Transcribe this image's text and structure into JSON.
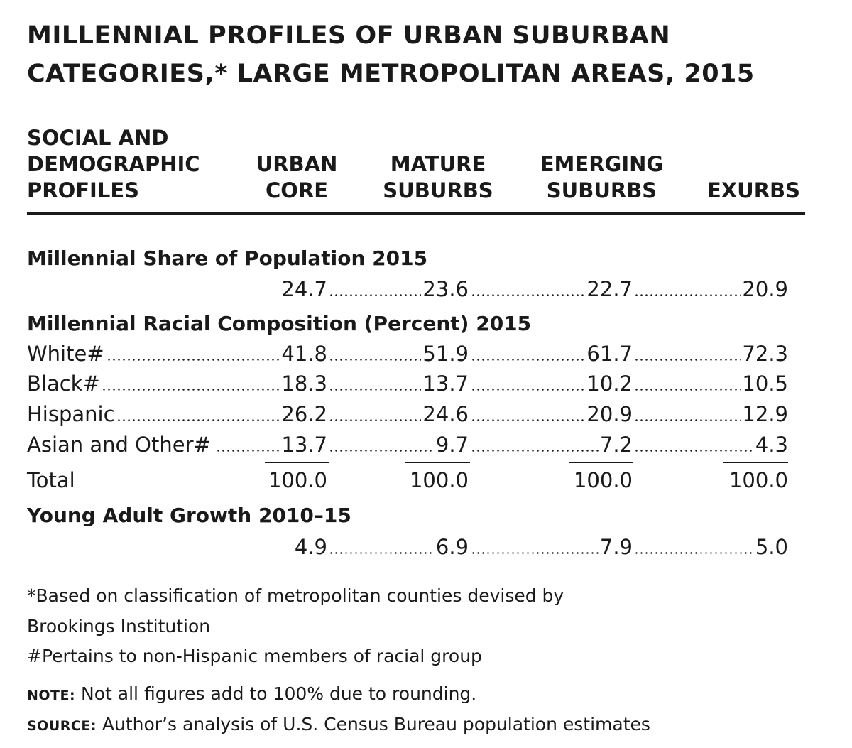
{
  "title": {
    "line1": "MILLENNIAL PROFILES OF URBAN SUBURBAN",
    "line2": "CATEGORIES,* LARGE METROPOLITAN AREAS, 2015"
  },
  "header": {
    "profiles": [
      "SOCIAL AND",
      "DEMOGRAPHIC",
      "PROFILES"
    ],
    "urban_core": [
      "URBAN",
      "CORE"
    ],
    "mature_suburbs": [
      "MATURE",
      "SUBURBS"
    ],
    "emerging_suburbs": [
      "EMERGING",
      "SUBURBS"
    ],
    "exurbs": [
      "EXURBS"
    ]
  },
  "sections": {
    "share": {
      "title": "Millennial Share of Population 2015",
      "values": [
        "24.7",
        "23.6",
        "22.7",
        "20.9"
      ]
    },
    "racial": {
      "title": "Millennial Racial Composition (Percent) 2015",
      "rows": [
        {
          "label": "White#",
          "values": [
            "41.8",
            "51.9",
            "61.7",
            "72.3"
          ]
        },
        {
          "label": "Black#",
          "values": [
            "18.3",
            "13.7",
            "10.2",
            "10.5"
          ]
        },
        {
          "label": "Hispanic",
          "values": [
            "26.2",
            "24.6",
            "20.9",
            "12.9"
          ]
        },
        {
          "label": "Asian and Other#",
          "values": [
            "13.7",
            "9.7",
            "7.2",
            "4.3"
          ]
        }
      ],
      "total": {
        "label": "Total",
        "values": [
          "100.0",
          "100.0",
          "100.0",
          "100.0"
        ]
      }
    },
    "growth": {
      "title": "Young Adult Growth 2010–15",
      "values": [
        "4.9",
        "6.9",
        "7.9",
        "5.0"
      ]
    }
  },
  "footnotes": {
    "asterisk_line1": "*Based on classification of metropolitan counties devised by",
    "asterisk_line2": "Brookings Institution",
    "hash": "#Pertains to non-Hispanic members of racial group",
    "note_label": "NOTE:",
    "note_text": " Not all figures add to 100% due to rounding.",
    "source_label": "SOURCE:",
    "source_text": " Author’s analysis of U.S. Census Bureau population estimates"
  }
}
